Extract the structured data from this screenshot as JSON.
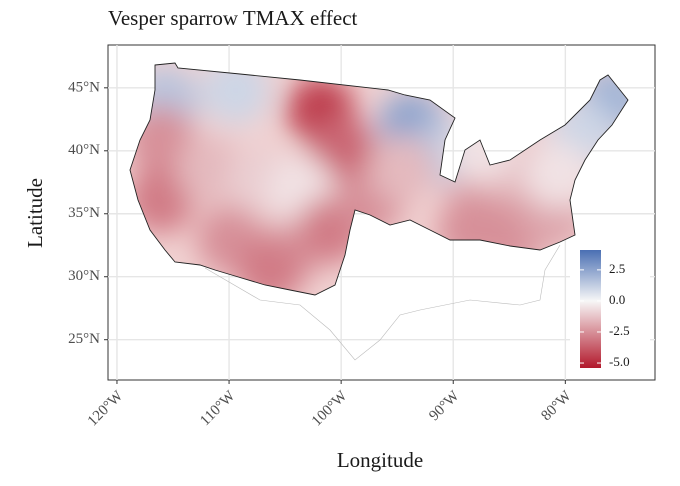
{
  "chart_data": {
    "type": "map",
    "title": "Vesper sparrow TMAX effect",
    "xlabel": "Longitude",
    "ylabel": "Latitude",
    "xlim": [
      -120.8,
      -72.0
    ],
    "ylim": [
      21.8,
      48.4
    ],
    "grid": true,
    "xticks": [
      {
        "value": -120,
        "label": "120°W"
      },
      {
        "value": -110,
        "label": "110°W"
      },
      {
        "value": -100,
        "label": "100°W"
      },
      {
        "value": -90,
        "label": "90°W"
      },
      {
        "value": -80,
        "label": "80°W"
      }
    ],
    "yticks": [
      {
        "value": 25,
        "label": "25°N"
      },
      {
        "value": 30,
        "label": "30°N"
      },
      {
        "value": 35,
        "label": "35°N"
      },
      {
        "value": 40,
        "label": "40°N"
      },
      {
        "value": 45,
        "label": "45°N"
      }
    ],
    "x": [
      -115.7,
      -109.4,
      -93.7,
      -90.6,
      -75.8,
      -78.5,
      -101.8,
      -100.0,
      -116.1,
      -116.1,
      -111.7,
      -107.2,
      -109.9,
      -104.5,
      -103.6,
      -100.9,
      -97.3,
      -94.6,
      -87.5,
      -83.9,
      -88.4,
      -84.8,
      -81.2,
      -80.7,
      -87.5,
      -106.3
    ],
    "y": [
      44.0,
      44.8,
      42.0,
      40.1,
      44.0,
      41.3,
      43.2,
      40.1,
      40.9,
      36.1,
      38.5,
      37.7,
      32.9,
      32.1,
      36.9,
      33.7,
      36.1,
      38.5,
      36.1,
      38.1,
      33.7,
      33.3,
      34.9,
      38.1,
      40.1,
      30.5
    ],
    "values": [
      1.5,
      1.0,
      2.5,
      1.5,
      2.0,
      1.0,
      -4.5,
      -3.5,
      -2.5,
      -3.0,
      -1.5,
      -1.0,
      -2.5,
      -2.0,
      -0.5,
      -3.0,
      -2.5,
      -1.5,
      -2.0,
      -1.5,
      -2.5,
      -2.5,
      -2.0,
      -0.5,
      -0.5,
      -3.0
    ],
    "colorbar": {
      "lim": [
        -5.4,
        4.1
      ],
      "ticks": [
        2.5,
        {
          "value": 0,
          "label": "0.0"
        },
        -2.5,
        {
          "value": -5,
          "label": "-5.0"
        }
      ],
      "colormap": [
        {
          "value": -5.4,
          "color": "#b2182b"
        },
        {
          "value": 0,
          "color": "#f7f7f7"
        },
        {
          "value": 4.1,
          "color": "#4a6fb3"
        }
      ]
    }
  }
}
